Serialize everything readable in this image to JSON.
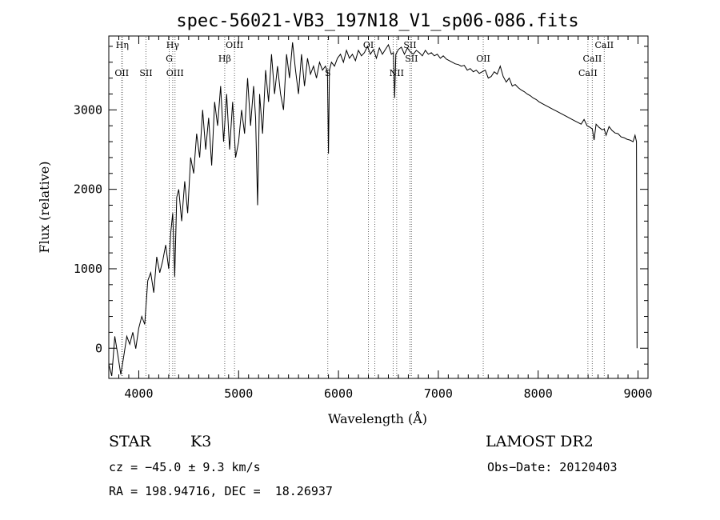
{
  "chart_data": {
    "type": "line",
    "title": "spec-56021-VB3_197N18_V1_sp06-086.fits",
    "xlabel": "Wavelength (Å)",
    "ylabel": "Flux (relative)",
    "xlim": [
      3700,
      9100
    ],
    "ylim": [
      -380,
      3930
    ],
    "xticks": [
      4000,
      5000,
      6000,
      7000,
      8000,
      9000
    ],
    "yticks": [
      0,
      1000,
      2000,
      3000
    ],
    "grid": false,
    "series": [
      {
        "x": [
          3700,
          3730,
          3760,
          3790,
          3820,
          3850,
          3880,
          3910,
          3940,
          3970,
          4000,
          4030,
          4060,
          4090,
          4120,
          4150,
          4180,
          4210,
          4240,
          4270,
          4300,
          4320,
          4340,
          4360,
          4380,
          4400,
          4430,
          4460,
          4490,
          4520,
          4550,
          4580,
          4610,
          4640,
          4670,
          4700,
          4730,
          4760,
          4790,
          4820,
          4850,
          4880,
          4910,
          4940,
          4970,
          5000,
          5030,
          5060,
          5090,
          5120,
          5150,
          5170,
          5190,
          5210,
          5240,
          5270,
          5300,
          5330,
          5360,
          5390,
          5420,
          5450,
          5480,
          5510,
          5540,
          5570,
          5600,
          5630,
          5660,
          5690,
          5720,
          5750,
          5780,
          5810,
          5840,
          5870,
          5890,
          5900,
          5910,
          5930,
          5960,
          5990,
          6020,
          6050,
          6080,
          6110,
          6140,
          6170,
          6200,
          6230,
          6260,
          6290,
          6320,
          6350,
          6380,
          6410,
          6440,
          6470,
          6500,
          6530,
          6550,
          6563,
          6575,
          6600,
          6630,
          6660,
          6690,
          6720,
          6750,
          6780,
          6810,
          6840,
          6870,
          6900,
          6930,
          6960,
          6990,
          7020,
          7050,
          7080,
          7110,
          7140,
          7170,
          7200,
          7230,
          7260,
          7290,
          7320,
          7350,
          7380,
          7410,
          7440,
          7470,
          7500,
          7530,
          7560,
          7590,
          7620,
          7650,
          7680,
          7710,
          7740,
          7770,
          7800,
          7830,
          7860,
          7890,
          7920,
          7950,
          7980,
          8010,
          8040,
          8070,
          8100,
          8130,
          8160,
          8190,
          8220,
          8250,
          8280,
          8310,
          8340,
          8370,
          8400,
          8430,
          8460,
          8490,
          8520,
          8542,
          8560,
          8580,
          8610,
          8640,
          8662,
          8680,
          8710,
          8740,
          8770,
          8800,
          8830,
          8860,
          8890,
          8920,
          8950,
          8970,
          8985,
          8990
        ],
        "y": [
          -200,
          -350,
          150,
          -80,
          -330,
          -100,
          150,
          50,
          200,
          -5,
          250,
          400,
          300,
          850,
          950,
          700,
          1150,
          950,
          1100,
          1300,
          1000,
          1450,
          1700,
          900,
          1900,
          2000,
          1600,
          2100,
          1700,
          2400,
          2200,
          2700,
          2400,
          3000,
          2500,
          2900,
          2300,
          3100,
          2800,
          3300,
          2600,
          3200,
          2500,
          3100,
          2400,
          2600,
          3000,
          2700,
          3400,
          2800,
          3300,
          2900,
          1800,
          3200,
          2700,
          3500,
          3100,
          3700,
          3200,
          3550,
          3200,
          3000,
          3700,
          3400,
          3850,
          3500,
          3200,
          3700,
          3300,
          3650,
          3450,
          3550,
          3400,
          3600,
          3500,
          3550,
          3480,
          2450,
          3500,
          3600,
          3550,
          3650,
          3700,
          3600,
          3750,
          3650,
          3700,
          3620,
          3750,
          3680,
          3720,
          3800,
          3700,
          3760,
          3650,
          3780,
          3700,
          3760,
          3820,
          3700,
          3720,
          3150,
          3700,
          3760,
          3790,
          3700,
          3780,
          3730,
          3700,
          3750,
          3720,
          3680,
          3750,
          3700,
          3720,
          3680,
          3700,
          3650,
          3680,
          3640,
          3620,
          3600,
          3580,
          3570,
          3550,
          3560,
          3500,
          3520,
          3480,
          3500,
          3460,
          3480,
          3500,
          3400,
          3420,
          3480,
          3450,
          3550,
          3420,
          3350,
          3400,
          3300,
          3320,
          3280,
          3250,
          3230,
          3200,
          3180,
          3150,
          3130,
          3100,
          3080,
          3060,
          3040,
          3020,
          3000,
          2980,
          2960,
          2940,
          2920,
          2900,
          2880,
          2860,
          2840,
          2820,
          2880,
          2800,
          2780,
          2760,
          2620,
          2820,
          2780,
          2750,
          2760,
          2680,
          2790,
          2740,
          2710,
          2700,
          2660,
          2650,
          2630,
          2620,
          2600,
          2680,
          2600,
          0
        ]
      }
    ],
    "lines": [
      {
        "wl": 3835,
        "label": "Hη",
        "row": 0
      },
      {
        "wl": 3830,
        "label": "OII",
        "row": 2
      },
      {
        "wl": 4072,
        "label": "SII",
        "row": 2
      },
      {
        "wl": 4340,
        "label": "Hγ",
        "row": 0
      },
      {
        "wl": 4305,
        "label": "G",
        "row": 1
      },
      {
        "wl": 4363,
        "label": "OIII",
        "row": 2
      },
      {
        "wl": 4861,
        "label": "Hβ",
        "row": 1
      },
      {
        "wl": 4959,
        "label": "OIII",
        "row": 0
      },
      {
        "wl": 5893,
        "label": "S",
        "row": 2
      },
      {
        "wl": 6300,
        "label": "OI",
        "row": 0
      },
      {
        "wl": 6364,
        "label": "",
        "row": 0
      },
      {
        "wl": 6548,
        "label": "",
        "row": 0
      },
      {
        "wl": 6583,
        "label": "NII",
        "row": 2
      },
      {
        "wl": 6716,
        "label": "SII",
        "row": 0
      },
      {
        "wl": 6731,
        "label": "SII",
        "row": 1
      },
      {
        "wl": 7450,
        "label": "OII",
        "row": 1
      },
      {
        "wl": 8498,
        "label": "CaII",
        "row": 2
      },
      {
        "wl": 8542,
        "label": "CaII",
        "row": 1
      },
      {
        "wl": 8662,
        "label": "CaII",
        "row": 0
      }
    ]
  },
  "info": {
    "object_class": "STAR",
    "subclass": "K3",
    "survey": "LAMOST DR2",
    "redshift": "cz = −45.0 ± 9.3 km/s",
    "obs_date": "Obs−Date: 20120403",
    "coords": "RA = 198.94716, DEC =  18.26937"
  }
}
